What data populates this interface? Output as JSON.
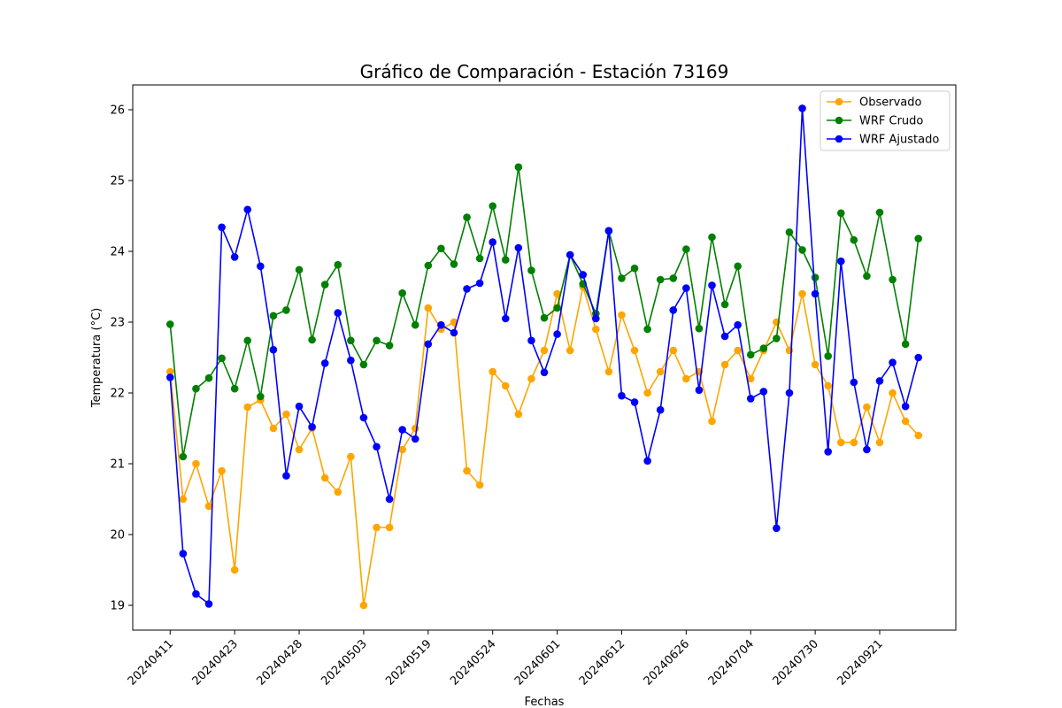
{
  "chart_data": {
    "type": "line",
    "title": "Gráfico de Comparación - Estación 73169",
    "xlabel": "Fechas",
    "ylabel": "Temperatura (°C)",
    "ylim": [
      18.65,
      26.35
    ],
    "yticks": [
      19,
      20,
      21,
      22,
      23,
      24,
      25,
      26
    ],
    "xticks": [
      {
        "index": 0,
        "label": "20240411"
      },
      {
        "index": 5,
        "label": "20240423"
      },
      {
        "index": 10,
        "label": "20240428"
      },
      {
        "index": 15,
        "label": "20240503"
      },
      {
        "index": 20,
        "label": "20240519"
      },
      {
        "index": 25,
        "label": "20240524"
      },
      {
        "index": 30,
        "label": "20240601"
      },
      {
        "index": 35,
        "label": "20240612"
      },
      {
        "index": 40,
        "label": "20240626"
      },
      {
        "index": 45,
        "label": "20240704"
      },
      {
        "index": 50,
        "label": "20240730"
      },
      {
        "index": 55,
        "label": "20240921"
      }
    ],
    "grid": false,
    "legend_position": "top-right",
    "series": [
      {
        "name": "Observado",
        "color": "#ffa500",
        "values": [
          22.3,
          20.5,
          21.0,
          20.4,
          20.9,
          19.5,
          21.8,
          21.9,
          21.5,
          21.7,
          21.2,
          21.5,
          20.8,
          20.6,
          21.1,
          19.0,
          20.1,
          20.1,
          21.2,
          21.5,
          23.2,
          22.9,
          23.0,
          20.9,
          20.7,
          22.3,
          22.1,
          21.7,
          22.2,
          22.6,
          23.4,
          22.6,
          23.5,
          22.9,
          22.3,
          23.1,
          22.6,
          22.0,
          22.3,
          22.6,
          22.2,
          22.3,
          21.6,
          22.4,
          22.6,
          22.2,
          22.6,
          23.0,
          22.6,
          23.4,
          22.4,
          22.1,
          21.3,
          21.3,
          21.8,
          21.3,
          22.0,
          21.6,
          21.4
        ]
      },
      {
        "name": "WRF Crudo",
        "color": "#008000",
        "values": [
          22.97,
          21.1,
          22.06,
          22.21,
          22.49,
          22.06,
          22.74,
          21.95,
          23.09,
          23.17,
          23.74,
          22.75,
          23.53,
          23.81,
          22.74,
          22.4,
          22.74,
          22.67,
          23.41,
          22.96,
          23.8,
          24.04,
          23.82,
          24.48,
          23.9,
          24.64,
          23.88,
          25.19,
          23.73,
          23.06,
          23.2,
          23.95,
          23.54,
          23.12,
          24.29,
          23.62,
          23.76,
          22.9,
          23.6,
          23.62,
          24.03,
          22.91,
          24.2,
          23.25,
          23.79,
          22.54,
          22.63,
          22.77,
          24.27,
          24.02,
          23.63,
          22.52,
          24.54,
          24.16,
          23.65,
          24.55,
          23.6,
          22.69,
          24.18
        ]
      },
      {
        "name": "WRF Ajustado",
        "color": "#0000ff",
        "values": [
          22.22,
          19.73,
          19.16,
          19.02,
          24.34,
          23.92,
          24.59,
          23.79,
          22.61,
          20.83,
          21.81,
          21.52,
          22.42,
          23.13,
          22.46,
          21.65,
          21.24,
          20.5,
          21.48,
          21.35,
          22.69,
          22.96,
          22.85,
          23.47,
          23.55,
          24.13,
          23.05,
          24.05,
          22.74,
          22.29,
          22.83,
          23.95,
          23.67,
          23.05,
          24.29,
          21.96,
          21.87,
          21.04,
          21.76,
          23.17,
          23.48,
          22.04,
          23.52,
          22.8,
          22.96,
          21.92,
          22.02,
          20.09,
          22.0,
          26.02,
          23.4,
          21.17,
          23.86,
          22.15,
          21.2,
          22.17,
          22.43,
          21.81,
          22.5
        ]
      }
    ]
  }
}
